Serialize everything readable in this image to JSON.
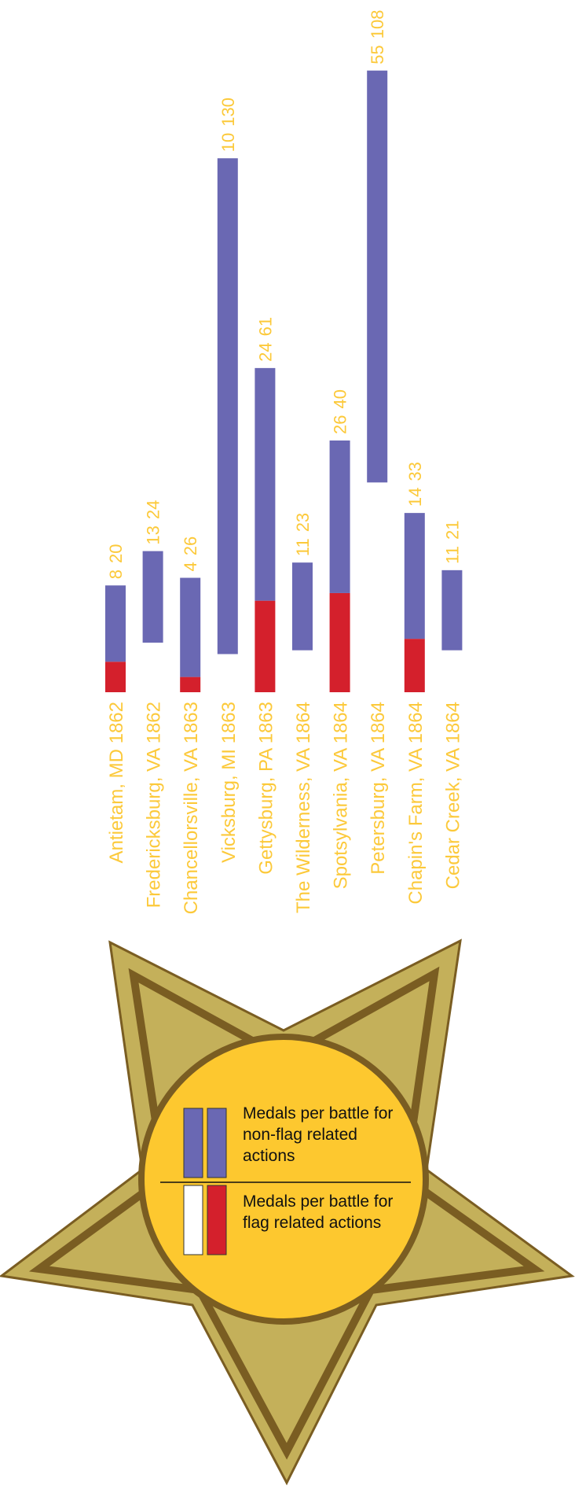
{
  "chart_data": {
    "type": "bar",
    "stacked": true,
    "categories": [
      "Antietam, MD 1862",
      "Fredericksburg, VA 1862",
      "Chancellorsville, VA 1863",
      "Vicksburg, MI 1863",
      "Gettysburg, PA 1863",
      "The Wilderness, VA 1864",
      "Spotsylvania, VA 1864",
      "Petersburg, VA 1864",
      "Chapin's Farm, VA 1864",
      "Cedar Creek, VA 1864"
    ],
    "series": [
      {
        "name": "Medals per battle for flag related actions",
        "colors": [
          "#d4202c",
          "#ffffff",
          "#d4202c",
          "#ffffff",
          "#d4202c",
          "#ffffff",
          "#d4202c",
          "#ffffff",
          "#d4202c",
          "#ffffff"
        ],
        "values": [
          8,
          13,
          4,
          10,
          24,
          11,
          26,
          55,
          14,
          11
        ]
      },
      {
        "name": "Medals per battle for non-flag related actions",
        "color": "#6a68b3",
        "values": [
          20,
          24,
          26,
          130,
          61,
          23,
          40,
          108,
          33,
          21
        ]
      }
    ],
    "ylim": [
      0,
      165
    ],
    "label_color": "#fcc93a"
  }
}
